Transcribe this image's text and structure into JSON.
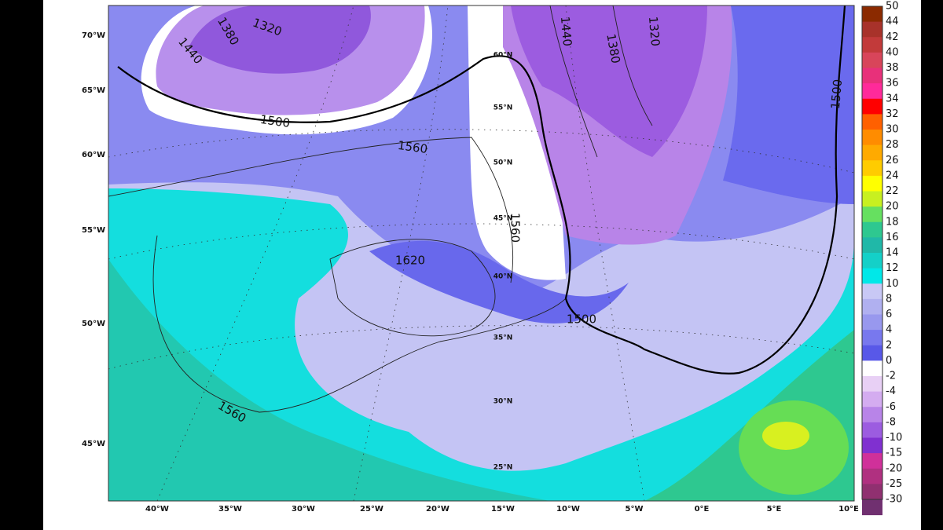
{
  "map": {
    "lat_labels": [
      "70°W",
      "65°W",
      "60°W",
      "55°W",
      "50°W",
      "45°W"
    ],
    "lon_labels": [
      "40°W",
      "35°W",
      "30°W",
      "25°W",
      "20°W",
      "15°W",
      "10°W",
      "5°W",
      "0°E",
      "5°E",
      "10°E"
    ],
    "grid_labels": [
      "60°N",
      "55°N",
      "50°N",
      "45°N",
      "40°N",
      "35°N",
      "30°N",
      "25°N"
    ],
    "contour_labels": [
      "1380",
      "1320",
      "1440",
      "1500",
      "1560",
      "1620",
      "1560",
      "1500",
      "1560",
      "1440",
      "1380",
      "1320",
      "1500"
    ]
  },
  "colorbar": {
    "labels": [
      "50",
      "44",
      "42",
      "40",
      "38",
      "36",
      "34",
      "32",
      "30",
      "28",
      "26",
      "24",
      "22",
      "20",
      "18",
      "16",
      "14",
      "12",
      "10",
      "8",
      "6",
      "4",
      "2",
      "0",
      "-2",
      "-4",
      "-6",
      "-8",
      "-10",
      "-15",
      "-20",
      "-25",
      "-30"
    ],
    "colors": [
      "#8b2a00",
      "#a8322a",
      "#c23a3a",
      "#d8455a",
      "#e8307a",
      "#ff2a9a",
      "#ff0000",
      "#ff6000",
      "#ff8c00",
      "#ffaa00",
      "#ffcc00",
      "#ffff00",
      "#c8f020",
      "#66e060",
      "#2ec890",
      "#20b8a8",
      "#14d0c8",
      "#00e8e8",
      "#c8c8f5",
      "#b0b0f0",
      "#9898ee",
      "#7878ee",
      "#5858e8",
      "#ffffff",
      "#e8d0f5",
      "#d4acf0",
      "#b884e8",
      "#9c5ce0",
      "#8030d0",
      "#d0309a",
      "#b03080",
      "#903070",
      "#703070"
    ]
  }
}
